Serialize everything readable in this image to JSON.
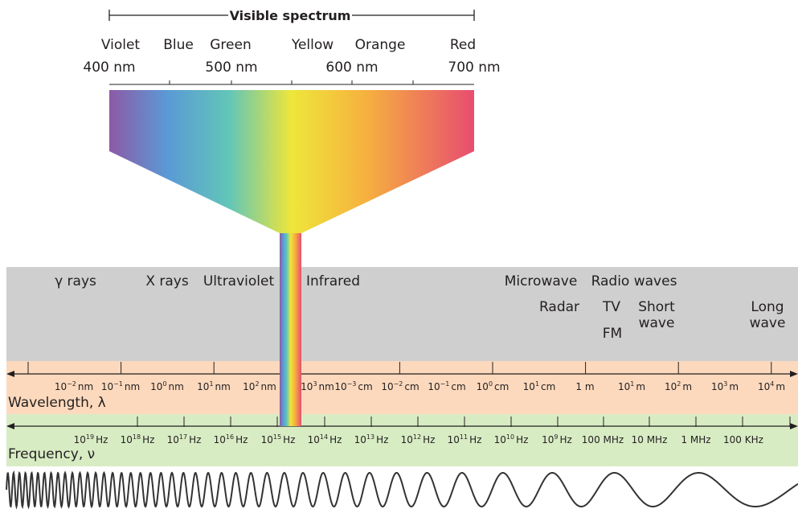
{
  "visible_spectrum": {
    "title": "Visible spectrum",
    "colors": [
      "Violet",
      "Blue",
      "Green",
      "Yellow",
      "Orange",
      "Red"
    ],
    "wavelengths": [
      "400 nm",
      "500 nm",
      "600 nm",
      "700 nm"
    ]
  },
  "regions": [
    "γ rays",
    "X rays",
    "Ultraviolet",
    "Infrared",
    "Microwave",
    "Radio waves"
  ],
  "subregions": [
    {
      "lines": [
        "Radar"
      ]
    },
    {
      "lines": [
        "TV"
      ]
    },
    {
      "lines": [
        "FM"
      ]
    },
    {
      "lines": [
        "Short",
        "wave"
      ]
    },
    {
      "lines": [
        "Long",
        "wave"
      ]
    }
  ],
  "wavelength": {
    "label": "Wavelength, λ",
    "ticks": [
      {
        "base": "10",
        "exp": "−2",
        "unit": "nm"
      },
      {
        "base": "10",
        "exp": "−1",
        "unit": "nm"
      },
      {
        "base": "10",
        "exp": "0",
        "unit": "nm"
      },
      {
        "base": "10",
        "exp": "1",
        "unit": "nm"
      },
      {
        "base": "10",
        "exp": "2",
        "unit": "nm"
      },
      {
        "base": "10",
        "exp": "3",
        "unit": "nm"
      },
      {
        "base": "10",
        "exp": "−3",
        "unit": "cm"
      },
      {
        "base": "10",
        "exp": "−2",
        "unit": "cm"
      },
      {
        "base": "10",
        "exp": "−1",
        "unit": "cm"
      },
      {
        "base": "10",
        "exp": "0",
        "unit": "cm"
      },
      {
        "base": "10",
        "exp": "1",
        "unit": "cm"
      },
      {
        "base": "1 m"
      },
      {
        "base": "10",
        "exp": "1",
        "unit": "m"
      },
      {
        "base": "10",
        "exp": "2",
        "unit": "m"
      },
      {
        "base": "10",
        "exp": "3",
        "unit": "m"
      },
      {
        "base": "10",
        "exp": "4",
        "unit": "m"
      }
    ]
  },
  "frequency": {
    "label": "Frequency, ν",
    "ticks": [
      {
        "base": "10",
        "exp": "19",
        "unit": "Hz"
      },
      {
        "base": "10",
        "exp": "18",
        "unit": "Hz"
      },
      {
        "base": "10",
        "exp": "17",
        "unit": "Hz"
      },
      {
        "base": "10",
        "exp": "16",
        "unit": "Hz"
      },
      {
        "base": "10",
        "exp": "15",
        "unit": "Hz"
      },
      {
        "base": "10",
        "exp": "14",
        "unit": "Hz"
      },
      {
        "base": "10",
        "exp": "13",
        "unit": "Hz"
      },
      {
        "base": "10",
        "exp": "12",
        "unit": "Hz"
      },
      {
        "base": "10",
        "exp": "11",
        "unit": "Hz"
      },
      {
        "base": "10",
        "exp": "10",
        "unit": "Hz"
      },
      {
        "base": "10",
        "exp": "9",
        "unit": "Hz"
      },
      {
        "base": "100 MHz"
      },
      {
        "base": "10 MHz"
      },
      {
        "base": "1 MHz"
      },
      {
        "base": "100 KHz"
      }
    ]
  }
}
